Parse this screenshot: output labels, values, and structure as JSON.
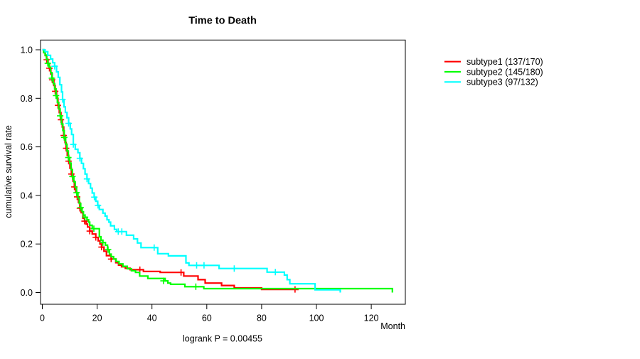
{
  "chart_data": {
    "type": "line",
    "subtype": "kaplan-meier-step",
    "title": "Time to Death",
    "xlabel": "Month",
    "ylabel": "cumulative survival rate",
    "footnote": "logrank P = 0.00455",
    "xlim": [
      0,
      132
    ],
    "ylim": [
      0,
      1.04
    ],
    "xticks": [
      0,
      20,
      40,
      60,
      80,
      100,
      120
    ],
    "ytick_labels": [
      "0.0",
      "0.2",
      "0.4",
      "0.6",
      "0.8",
      "1.0"
    ],
    "grid": false,
    "legend_position": "right-outside",
    "colors": {
      "subtype1": "#ff0000",
      "subtype2": "#00ff00",
      "subtype3": "#00ffff"
    },
    "series": [
      {
        "name": "subtype1",
        "label": "subtype1 (137/170)",
        "events": 137,
        "n": 170,
        "color": "#ff0000",
        "end_time": 93.5,
        "final_drop_to_zero": false,
        "points": [
          [
            0.6,
            0.988
          ],
          [
            1.1,
            0.976
          ],
          [
            1.6,
            0.959
          ],
          [
            2.1,
            0.941
          ],
          [
            2.6,
            0.924
          ],
          [
            3.1,
            0.9
          ],
          [
            3.6,
            0.876
          ],
          [
            4.2,
            0.853
          ],
          [
            4.7,
            0.829
          ],
          [
            5.2,
            0.8
          ],
          [
            5.7,
            0.771
          ],
          [
            6.2,
            0.741
          ],
          [
            6.8,
            0.712
          ],
          [
            7.3,
            0.682
          ],
          [
            7.8,
            0.647
          ],
          [
            8.3,
            0.618
          ],
          [
            8.7,
            0.594
          ],
          [
            9.1,
            0.565
          ],
          [
            9.6,
            0.541
          ],
          [
            10.1,
            0.512
          ],
          [
            10.6,
            0.488
          ],
          [
            11.2,
            0.459
          ],
          [
            11.7,
            0.435
          ],
          [
            12.2,
            0.412
          ],
          [
            12.7,
            0.394
          ],
          [
            13.2,
            0.371
          ],
          [
            13.7,
            0.347
          ],
          [
            14.2,
            0.329
          ],
          [
            14.8,
            0.306
          ],
          [
            15.4,
            0.294
          ],
          [
            16.0,
            0.282
          ],
          [
            16.5,
            0.27
          ],
          [
            17.3,
            0.253
          ],
          [
            18.2,
            0.241
          ],
          [
            19.5,
            0.227
          ],
          [
            20.4,
            0.213
          ],
          [
            21.0,
            0.2
          ],
          [
            21.6,
            0.187
          ],
          [
            22.5,
            0.17
          ],
          [
            23.4,
            0.152
          ],
          [
            25.1,
            0.138
          ],
          [
            26.8,
            0.123
          ],
          [
            27.8,
            0.113
          ],
          [
            28.9,
            0.106
          ],
          [
            30.3,
            0.1
          ],
          [
            32.0,
            0.094
          ],
          [
            36.9,
            0.087
          ],
          [
            43.0,
            0.083
          ],
          [
            51.6,
            0.068
          ],
          [
            56.8,
            0.053
          ],
          [
            59.4,
            0.039
          ],
          [
            65.4,
            0.029
          ],
          [
            70.0,
            0.019
          ],
          [
            80.0,
            0.013
          ]
        ],
        "censor_marks": [
          [
            1.6,
            0.959
          ],
          [
            2.6,
            0.924
          ],
          [
            3.6,
            0.876
          ],
          [
            4.7,
            0.829
          ],
          [
            5.7,
            0.771
          ],
          [
            6.8,
            0.712
          ],
          [
            7.8,
            0.647
          ],
          [
            8.7,
            0.594
          ],
          [
            9.6,
            0.541
          ],
          [
            10.6,
            0.488
          ],
          [
            11.7,
            0.435
          ],
          [
            12.7,
            0.394
          ],
          [
            13.7,
            0.347
          ],
          [
            15.4,
            0.294
          ],
          [
            17.3,
            0.253
          ],
          [
            19.5,
            0.227
          ],
          [
            21.6,
            0.187
          ],
          [
            25.1,
            0.138
          ],
          [
            35.6,
            0.094
          ],
          [
            50.6,
            0.083
          ],
          [
            92.2,
            0.013
          ]
        ]
      },
      {
        "name": "subtype2",
        "label": "subtype2 (145/180)",
        "events": 145,
        "n": 180,
        "color": "#00ff00",
        "end_time": 127.7,
        "final_drop_to_zero": true,
        "points": [
          [
            0.5,
            0.989
          ],
          [
            1.0,
            0.978
          ],
          [
            1.5,
            0.961
          ],
          [
            2.0,
            0.944
          ],
          [
            2.5,
            0.928
          ],
          [
            3.0,
            0.906
          ],
          [
            3.5,
            0.883
          ],
          [
            4.0,
            0.861
          ],
          [
            4.5,
            0.839
          ],
          [
            5.0,
            0.811
          ],
          [
            5.5,
            0.783
          ],
          [
            6.0,
            0.756
          ],
          [
            6.5,
            0.728
          ],
          [
            7.0,
            0.694
          ],
          [
            7.5,
            0.667
          ],
          [
            8.0,
            0.639
          ],
          [
            8.5,
            0.611
          ],
          [
            9.0,
            0.583
          ],
          [
            9.5,
            0.556
          ],
          [
            10.0,
            0.533
          ],
          [
            10.5,
            0.506
          ],
          [
            11.0,
            0.478
          ],
          [
            11.5,
            0.456
          ],
          [
            12.0,
            0.433
          ],
          [
            12.5,
            0.411
          ],
          [
            13.0,
            0.389
          ],
          [
            13.5,
            0.367
          ],
          [
            14.0,
            0.35
          ],
          [
            14.5,
            0.333
          ],
          [
            15.0,
            0.317
          ],
          [
            15.6,
            0.31
          ],
          [
            16.3,
            0.3
          ],
          [
            16.9,
            0.29
          ],
          [
            17.3,
            0.277
          ],
          [
            18.2,
            0.263
          ],
          [
            20.8,
            0.23
          ],
          [
            21.4,
            0.215
          ],
          [
            22.1,
            0.206
          ],
          [
            23.0,
            0.195
          ],
          [
            23.8,
            0.177
          ],
          [
            24.5,
            0.158
          ],
          [
            25.1,
            0.148
          ],
          [
            26.0,
            0.138
          ],
          [
            26.9,
            0.128
          ],
          [
            28.0,
            0.118
          ],
          [
            29.4,
            0.108
          ],
          [
            31.0,
            0.098
          ],
          [
            32.5,
            0.09
          ],
          [
            34.0,
            0.083
          ],
          [
            35.5,
            0.068
          ],
          [
            38.5,
            0.058
          ],
          [
            44.8,
            0.048
          ],
          [
            45.8,
            0.039
          ],
          [
            46.8,
            0.034
          ],
          [
            52.0,
            0.024
          ],
          [
            58.9,
            0.016
          ]
        ],
        "censor_marks": [
          [
            2.0,
            0.944
          ],
          [
            3.5,
            0.883
          ],
          [
            5.0,
            0.811
          ],
          [
            6.5,
            0.728
          ],
          [
            8.0,
            0.639
          ],
          [
            9.5,
            0.556
          ],
          [
            11.0,
            0.478
          ],
          [
            12.5,
            0.411
          ],
          [
            14.0,
            0.35
          ],
          [
            15.6,
            0.31
          ],
          [
            18.8,
            0.263
          ],
          [
            22.1,
            0.206
          ],
          [
            24.0,
            0.177
          ],
          [
            44.2,
            0.048
          ],
          [
            56.0,
            0.024
          ]
        ]
      },
      {
        "name": "subtype3",
        "label": "subtype3 (97/132)",
        "events": 97,
        "n": 132,
        "color": "#00ffff",
        "end_time": 108.7,
        "final_drop_to_zero": true,
        "points": [
          [
            1.0,
            0.992
          ],
          [
            2.0,
            0.977
          ],
          [
            3.0,
            0.962
          ],
          [
            3.8,
            0.947
          ],
          [
            4.5,
            0.932
          ],
          [
            5.2,
            0.909
          ],
          [
            5.8,
            0.886
          ],
          [
            6.4,
            0.856
          ],
          [
            7.0,
            0.826
          ],
          [
            7.4,
            0.795
          ],
          [
            7.9,
            0.765
          ],
          [
            8.4,
            0.742
          ],
          [
            9.0,
            0.72
          ],
          [
            9.6,
            0.697
          ],
          [
            10.2,
            0.674
          ],
          [
            10.7,
            0.651
          ],
          [
            11.3,
            0.61
          ],
          [
            12.0,
            0.59
          ],
          [
            13.0,
            0.576
          ],
          [
            13.7,
            0.553
          ],
          [
            14.3,
            0.532
          ],
          [
            15.0,
            0.51
          ],
          [
            15.6,
            0.488
          ],
          [
            16.3,
            0.468
          ],
          [
            16.9,
            0.449
          ],
          [
            17.6,
            0.43
          ],
          [
            18.2,
            0.41
          ],
          [
            18.9,
            0.393
          ],
          [
            19.5,
            0.376
          ],
          [
            20.2,
            0.359
          ],
          [
            20.8,
            0.342
          ],
          [
            22.1,
            0.327
          ],
          [
            22.9,
            0.315
          ],
          [
            23.6,
            0.3
          ],
          [
            24.3,
            0.29
          ],
          [
            24.9,
            0.275
          ],
          [
            26.3,
            0.26
          ],
          [
            27.1,
            0.251
          ],
          [
            30.7,
            0.236
          ],
          [
            33.3,
            0.221
          ],
          [
            34.7,
            0.204
          ],
          [
            36.0,
            0.185
          ],
          [
            42.1,
            0.16
          ],
          [
            46.0,
            0.151
          ],
          [
            52.4,
            0.122
          ],
          [
            53.5,
            0.112
          ],
          [
            64.5,
            0.099
          ],
          [
            82.0,
            0.084
          ],
          [
            88.3,
            0.072
          ],
          [
            89.3,
            0.053
          ],
          [
            90.3,
            0.036
          ],
          [
            99.5,
            0.011
          ]
        ],
        "censor_marks": [
          [
            4.5,
            0.932
          ],
          [
            7.4,
            0.795
          ],
          [
            9.6,
            0.697
          ],
          [
            11.3,
            0.61
          ],
          [
            13.7,
            0.553
          ],
          [
            16.3,
            0.468
          ],
          [
            19.0,
            0.393
          ],
          [
            20.3,
            0.359
          ],
          [
            27.7,
            0.251
          ],
          [
            29.0,
            0.251
          ],
          [
            40.8,
            0.185
          ],
          [
            56.3,
            0.112
          ],
          [
            59.0,
            0.112
          ],
          [
            70.0,
            0.099
          ],
          [
            85.0,
            0.084
          ]
        ]
      }
    ]
  }
}
